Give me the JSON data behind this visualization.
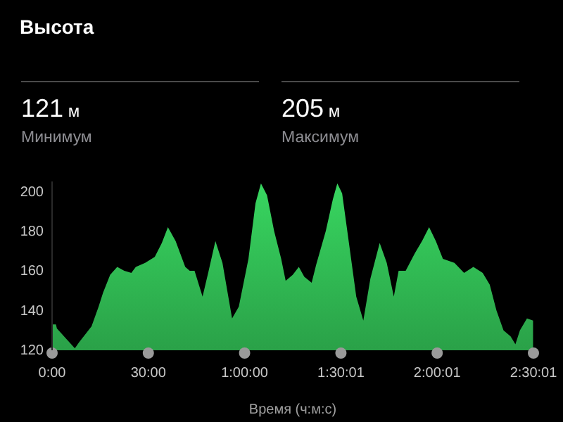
{
  "chart_data": [
    {
      "type": "other",
      "title": "Высота",
      "annotations": [
        "121 м",
        "Минимум",
        "205 м",
        "Максимум"
      ]
    },
    {
      "type": "area",
      "xlabel": "Время (ч:м:с)",
      "xlim": [
        0,
        150.02
      ],
      "ylim": [
        120,
        205
      ],
      "xticks": [
        {
          "value": 0,
          "label": "0:00"
        },
        {
          "value": 30,
          "label": "30:00"
        },
        {
          "value": 60,
          "label": "1:00:00"
        },
        {
          "value": 90.02,
          "label": "1:30:01"
        },
        {
          "value": 120.02,
          "label": "2:00:01"
        },
        {
          "value": 150.02,
          "label": "2:30:01"
        }
      ],
      "yticks": [
        120,
        140,
        160,
        180,
        200
      ],
      "grid": false,
      "series": [
        {
          "color": "#34c759",
          "x": [
            0.1,
            0.8,
            1.2,
            1.5,
            7.1,
            8.4,
            12.3,
            14.5,
            15.9,
            18.1,
            20.3,
            22.5,
            24.7,
            26.1,
            29,
            32,
            34.2,
            36.1,
            38.5,
            41.5,
            42.9,
            44.4,
            46.9,
            48.8,
            50.9,
            53.1,
            56.1,
            58.2,
            61.2,
            63.4,
            65.1,
            67,
            69.2,
            71.4,
            72.8,
            75,
            76.9,
            78.6,
            80.9,
            82.3,
            85.3,
            87.5,
            88.9,
            90.4,
            92.6,
            94.8,
            97,
            99.2,
            102.1,
            104.3,
            106.5,
            108,
            110.2,
            113.1,
            115.3,
            117.5,
            119.6,
            121.8,
            125.4,
            128.4,
            131.3,
            134.2,
            136.4,
            138.5,
            140.7,
            142.9,
            144.4,
            145.8,
            148,
            149.9
          ],
          "values": [
            133,
            133,
            133,
            131,
            121,
            124,
            132,
            142,
            149,
            158,
            162,
            160,
            159,
            162,
            164,
            167,
            174,
            182,
            175,
            162,
            160,
            160,
            147,
            160,
            175,
            164,
            136,
            142,
            166,
            194,
            204,
            198,
            180,
            166,
            155,
            158,
            162,
            157,
            154,
            163,
            180,
            196,
            204,
            199,
            173,
            147,
            135,
            156,
            174,
            164,
            147,
            160,
            160,
            169,
            175,
            182,
            175,
            166,
            164,
            159,
            162,
            159,
            153,
            140,
            130,
            127,
            123,
            130,
            136,
            135
          ]
        }
      ]
    }
  ]
}
